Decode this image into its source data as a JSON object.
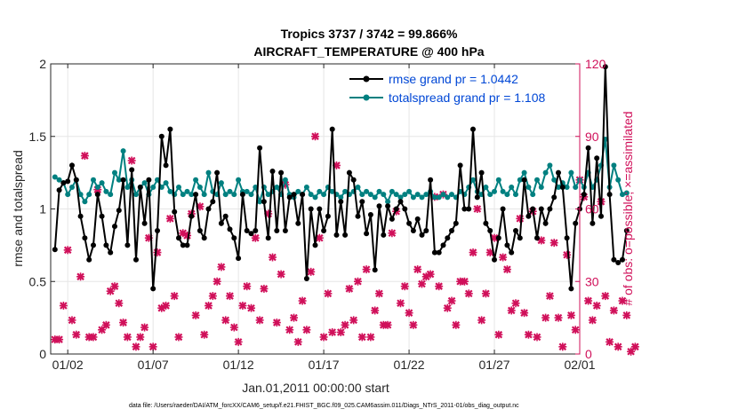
{
  "chart_data": {
    "type": "line",
    "title_line1": "Tropics 3737 / 3742 = 99.866%",
    "title_line2": "AIRCRAFT_TEMPERATURE @ 400 hPa",
    "xlabel": "Jan.01,2011 00:00:00 start",
    "ylabel_left": "rmse and totalspread",
    "ylabel_right": "# of obs: o=possible; ×=assimilated",
    "xlim": [
      0,
      31
    ],
    "ylim_left": [
      0,
      2
    ],
    "ylim_right": [
      0,
      120
    ],
    "x_ticks": [
      {
        "value": 1,
        "label": "01/02"
      },
      {
        "value": 6,
        "label": "01/07"
      },
      {
        "value": 11,
        "label": "01/12"
      },
      {
        "value": 16,
        "label": "01/17"
      },
      {
        "value": 21,
        "label": "01/22"
      },
      {
        "value": 26,
        "label": "01/27"
      },
      {
        "value": 31,
        "label": "02/01"
      }
    ],
    "y_ticks_left": [
      {
        "value": 0,
        "label": "0"
      },
      {
        "value": 0.5,
        "label": "0.5"
      },
      {
        "value": 1,
        "label": "1"
      },
      {
        "value": 1.5,
        "label": "1.5"
      },
      {
        "value": 2,
        "label": "2"
      }
    ],
    "y_ticks_right": [
      {
        "value": 0,
        "label": "0"
      },
      {
        "value": 30,
        "label": "30"
      },
      {
        "value": 60,
        "label": "60"
      },
      {
        "value": 90,
        "label": "90"
      },
      {
        "value": 120,
        "label": "120"
      }
    ],
    "grid": true,
    "legend_position": "top-right",
    "series": [
      {
        "name": "rmse grand pr = 1.0442",
        "color": "#000000",
        "axis": "left",
        "x_start": 0.25,
        "x_step": 0.25,
        "values": [
          0.72,
          1.13,
          1.18,
          1.19,
          1.3,
          1.2,
          0.95,
          0.8,
          0.65,
          0.75,
          1.1,
          0.95,
          0.75,
          0.7,
          0.88,
          0.99,
          1.2,
          0.75,
          1.27,
          0.65,
          1.15,
          0.9,
          1.2,
          0.45,
          0.85,
          1.5,
          1.3,
          1.55,
          0.98,
          0.8,
          0.75,
          0.75,
          0.95,
          1.1,
          0.85,
          0.8,
          1.0,
          1.05,
          1.25,
          0.9,
          0.95,
          0.86,
          0.8,
          0.66,
          1.1,
          0.85,
          0.83,
          0.85,
          1.42,
          1.05,
          0.8,
          1.26,
          0.85,
          1.25,
          0.85,
          1.08,
          1.1,
          0.9,
          1.1,
          0.52,
          1.0,
          0.75,
          1.0,
          0.85,
          0.95,
          1.55,
          0.82,
          1.05,
          0.82,
          1.25,
          1.2,
          0.95,
          1.05,
          0.83,
          0.96,
          0.58,
          1.02,
          0.82,
          1.02,
          0.93,
          1.0,
          1.05,
          1.0,
          0.9,
          0.85,
          0.93,
          0.82,
          0.85,
          1.2,
          0.7,
          0.7,
          0.75,
          0.8,
          0.85,
          0.9,
          1.3,
          1.0,
          1.0,
          1.55,
          1.08,
          1.25,
          0.9,
          0.85,
          0.65,
          0.8,
          1.0,
          0.75,
          0.7,
          0.85,
          0.8,
          1.2,
          0.95,
          1.0,
          0.8,
          1.0,
          0.9,
          1.0,
          1.08,
          1.25,
          1.15,
          0.8,
          0.45,
          0.9,
          1.0,
          1.1,
          1.42,
          0.9,
          1.35,
          0.95,
          1.98,
          1.1,
          0.65,
          0.63,
          0.65,
          0.85
        ]
      },
      {
        "name": "totalspread grand pr = 1.108",
        "color": "#008080",
        "axis": "left",
        "x_start": 0.25,
        "x_step": 0.25,
        "values": [
          1.22,
          1.2,
          1.18,
          1.1,
          1.15,
          1.2,
          1.1,
          1.05,
          1.1,
          1.2,
          1.15,
          1.18,
          1.12,
          1.1,
          1.25,
          1.2,
          1.4,
          1.15,
          1.2,
          1.1,
          1.15,
          1.18,
          1.1,
          1.15,
          1.2,
          1.15,
          1.18,
          1.12,
          1.1,
          1.15,
          1.1,
          1.12,
          1.1,
          1.2,
          1.15,
          1.1,
          1.25,
          1.12,
          1.1,
          1.18,
          1.1,
          1.12,
          1.1,
          1.2,
          1.12,
          1.12,
          1.1,
          1.15,
          1.05,
          1.15,
          1.1,
          1.12,
          1.15,
          1.1,
          1.2,
          1.1,
          1.08,
          1.12,
          1.1,
          1.15,
          1.1,
          1.08,
          1.12,
          1.1,
          1.15,
          1.12,
          1.1,
          1.08,
          1.12,
          1.1,
          1.12,
          1.15,
          1.1,
          1.12,
          1.1,
          1.08,
          1.12,
          1.1,
          1.05,
          1.12,
          1.1,
          1.08,
          1.1,
          1.12,
          1.08,
          1.1,
          1.08,
          1.1,
          1.12,
          1.08,
          1.08,
          1.1,
          1.08,
          1.1,
          1.08,
          1.12,
          1.1,
          1.15,
          1.2,
          1.12,
          1.1,
          1.15,
          1.1,
          1.12,
          1.2,
          1.12,
          1.1,
          1.15,
          1.1,
          1.2,
          1.25,
          1.15,
          1.1,
          1.2,
          1.15,
          1.25,
          1.3,
          1.2,
          1.15,
          1.18,
          1.15,
          1.25,
          1.15,
          1.2,
          1.15,
          1.25,
          1.15,
          1.2,
          1.3,
          1.48,
          1.15,
          1.3,
          1.2,
          1.1,
          1.11
        ]
      },
      {
        "name": "# obs assimilated",
        "color": "#d0105a",
        "axis": "right",
        "marker": "x",
        "x_start": 0.25,
        "x_step": 0.25,
        "values": [
          6,
          6,
          20,
          43,
          14,
          8,
          32,
          82,
          7,
          7,
          68,
          10,
          12,
          26,
          28,
          21,
          13,
          7,
          80,
          3,
          7,
          11,
          48,
          3,
          42,
          19,
          20,
          56,
          24,
          7,
          50,
          49,
          58,
          16,
          61,
          8,
          20,
          24,
          30,
          36,
          14,
          24,
          11,
          5,
          20,
          28,
          19,
          48,
          14,
          27,
          58,
          40,
          13,
          33,
          70,
          10,
          15,
          5,
          22,
          10,
          34,
          90,
          48,
          7,
          25,
          9,
          78,
          9,
          12,
          27,
          14,
          30,
          7,
          35,
          7,
          18,
          25,
          12,
          12,
          50,
          59,
          21,
          28,
          17,
          12,
          35,
          29,
          32,
          33,
          65,
          28,
          66,
          19,
          22,
          12,
          30,
          30,
          25,
          42,
          60,
          14,
          25,
          42,
          48,
          8,
          40,
          35,
          18,
          21,
          56,
          17,
          8,
          59,
          7,
          47,
          15,
          24,
          46,
          15,
          3,
          41,
          16,
          10,
          72,
          65,
          22,
          14,
          20,
          63,
          24,
          5,
          18,
          3,
          22,
          16,
          1,
          3
        ]
      }
    ],
    "footnote": "data file: /Users/raeder/DAI/ATM_forcXX/CAM6_setup/f.e21.FHIST_BGC.f09_025.CAM6assim.011/Diags_NTrS_2011-01/obs_diag_output.nc"
  }
}
